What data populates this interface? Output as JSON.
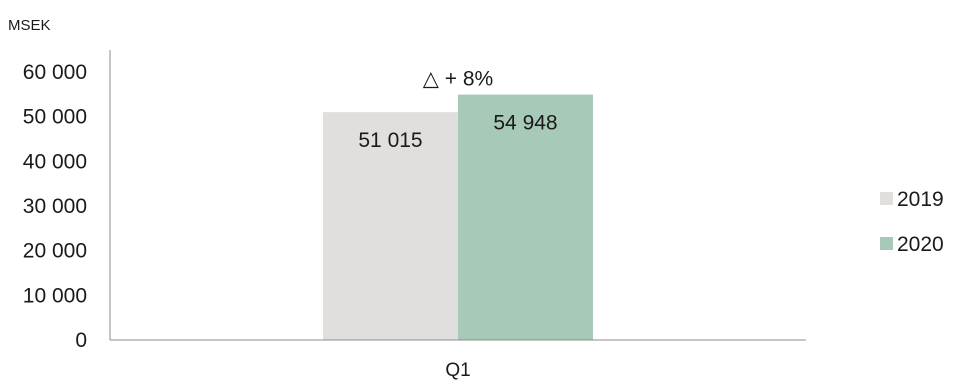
{
  "chart_data": {
    "type": "bar",
    "unit_label": "MSEK",
    "categories": [
      "Q1"
    ],
    "series": [
      {
        "name": "2019",
        "values": [
          51015
        ],
        "value_labels": [
          "51 015"
        ],
        "color": "#e0dfdd"
      },
      {
        "name": "2020",
        "values": [
          54948
        ],
        "value_labels": [
          "54 948"
        ],
        "color": "#a6c9b8"
      }
    ],
    "y_ticks": [
      0,
      10000,
      20000,
      30000,
      40000,
      50000,
      60000
    ],
    "y_tick_labels": [
      "0",
      "10 000",
      "20 000",
      "30 000",
      "40 000",
      "50 000",
      "60 000"
    ],
    "ylim": [
      0,
      60000
    ],
    "annotation": "△  + 8%",
    "grid": false,
    "legend_position": "right"
  }
}
